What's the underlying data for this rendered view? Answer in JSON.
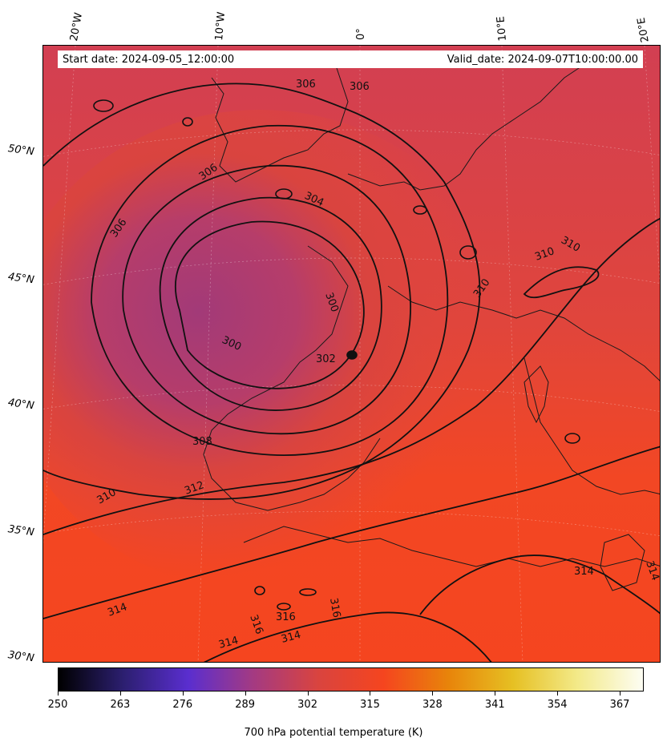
{
  "map": {
    "start_date": "Start date: 2024-09-05_12:00:00",
    "valid_date": "Valid_date: 2024-09-07T10:00:00.00",
    "longitude_labels": [
      "20°W",
      "10°W",
      "0°",
      "10°E",
      "20°E"
    ],
    "latitude_labels": [
      "50°N",
      "45°N",
      "40°N",
      "35°N",
      "30°N"
    ],
    "contour_labels": [
      "306",
      "306",
      "306",
      "306",
      "304",
      "310",
      "310",
      "310",
      "300",
      "300",
      "302",
      "308",
      "310",
      "312",
      "314",
      "314",
      "314",
      "316",
      "316",
      "316",
      "314",
      "314"
    ],
    "colors": {
      "cold_core": "#a23a78",
      "mid": "#e0463e",
      "warm": "#f5451f",
      "contour": "#111111",
      "coast": "#1a1a1a"
    }
  },
  "colorbar": {
    "label": "700 hPa potential temperature (K)",
    "ticks": [
      "250",
      "263",
      "276",
      "289",
      "302",
      "315",
      "328",
      "341",
      "354",
      "367"
    ],
    "range": [
      250,
      372
    ],
    "colors": [
      "#000000",
      "#2c1f70",
      "#5a2ecf",
      "#a43a82",
      "#d9443f",
      "#f5451f",
      "#e8840a",
      "#e6c023",
      "#f3ea8a",
      "#fdfdf3"
    ]
  }
}
